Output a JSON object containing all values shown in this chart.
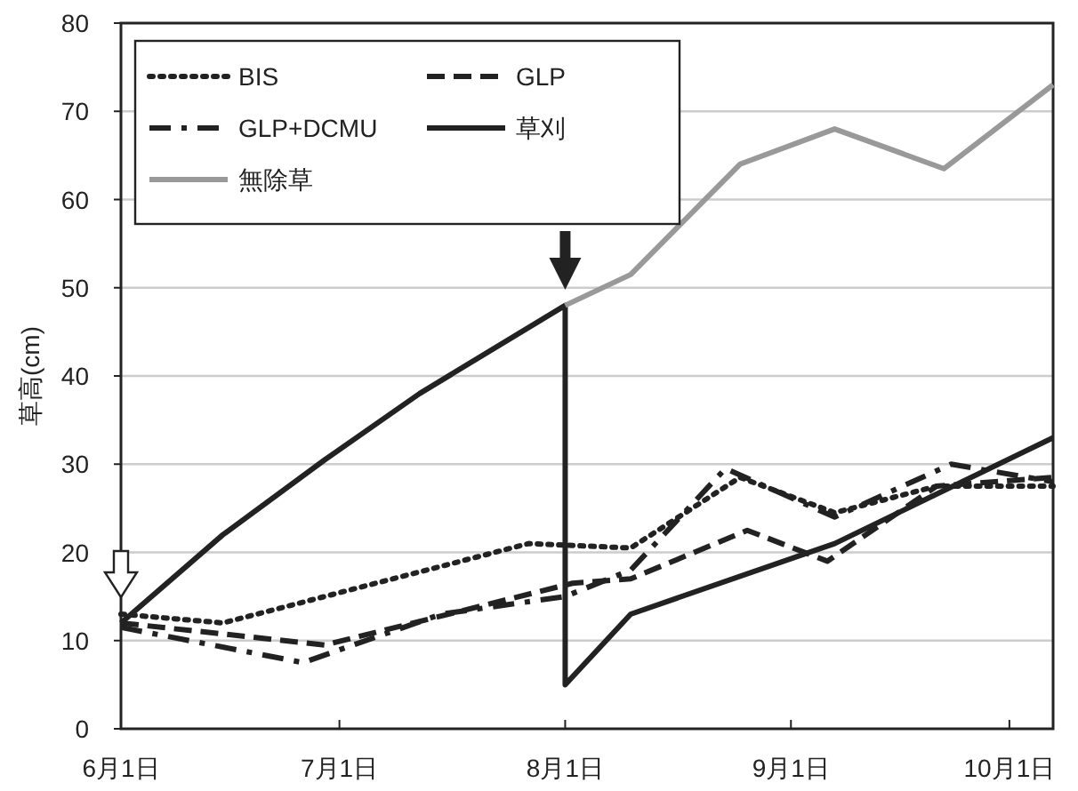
{
  "chart_data": {
    "type": "line",
    "ylabel": "草高(cm)",
    "xlim": [
      "--06-01",
      "--10-07"
    ],
    "ylim": [
      0,
      80
    ],
    "yticks": [
      0,
      10,
      20,
      30,
      40,
      50,
      60,
      70,
      80
    ],
    "xticks": [
      {
        "value": "--06-01",
        "label": "6月1日"
      },
      {
        "value": "--07-01",
        "label": "7月1日"
      },
      {
        "value": "--08-01",
        "label": "8月1日"
      },
      {
        "value": "--09-01",
        "label": "9月1日"
      },
      {
        "value": "--10-01",
        "label": "10月1日"
      }
    ],
    "grid": "y",
    "legend": "top left",
    "marker": "none",
    "series": [
      {
        "name": "BIS",
        "color": "#222222",
        "line_style": "dotted",
        "x": [
          "--06-01",
          "--06-15",
          "--07-27",
          "--08-10",
          "--08-25",
          "--09-07",
          "--09-21",
          "--10-07"
        ],
        "values": [
          13,
          12,
          21,
          20.5,
          28.5,
          24.5,
          27.5,
          27.5
        ]
      },
      {
        "name": "GLP",
        "color": "#222222",
        "line_style": "dashed",
        "x": [
          "--06-01",
          "--06-29",
          "--08-02",
          "--08-10",
          "--08-26",
          "--09-06",
          "--09-21",
          "--10-07"
        ],
        "values": [
          12,
          9.5,
          16.5,
          17,
          22.5,
          19,
          27.5,
          28.5
        ]
      },
      {
        "name": "GLP+DCMU",
        "color": "#222222",
        "line_style": "dashdot",
        "x": [
          "--06-01",
          "--06-26",
          "--07-15",
          "--08-01",
          "--08-10",
          "--08-23",
          "--09-07",
          "--09-23",
          "--10-07"
        ],
        "values": [
          11.5,
          7.5,
          13,
          15,
          18,
          29.5,
          24,
          30,
          28
        ]
      },
      {
        "name": "草刈",
        "color": "#222222",
        "line_style": "solid",
        "x": [
          "--06-01",
          "--06-15",
          "--06-29",
          "--07-12",
          "--08-01",
          "--08-01",
          "--08-10",
          "--09-07",
          "--10-07"
        ],
        "values": [
          12,
          22,
          30.5,
          38,
          48,
          5,
          13,
          21,
          33
        ]
      },
      {
        "name": "無除草",
        "color": "#999999",
        "line_style": "solid",
        "x": [
          "--08-01",
          "--08-10",
          "--08-25",
          "--09-07",
          "--09-22",
          "--10-07"
        ],
        "values": [
          48,
          51.5,
          64,
          68,
          63.5,
          73
        ]
      }
    ]
  }
}
